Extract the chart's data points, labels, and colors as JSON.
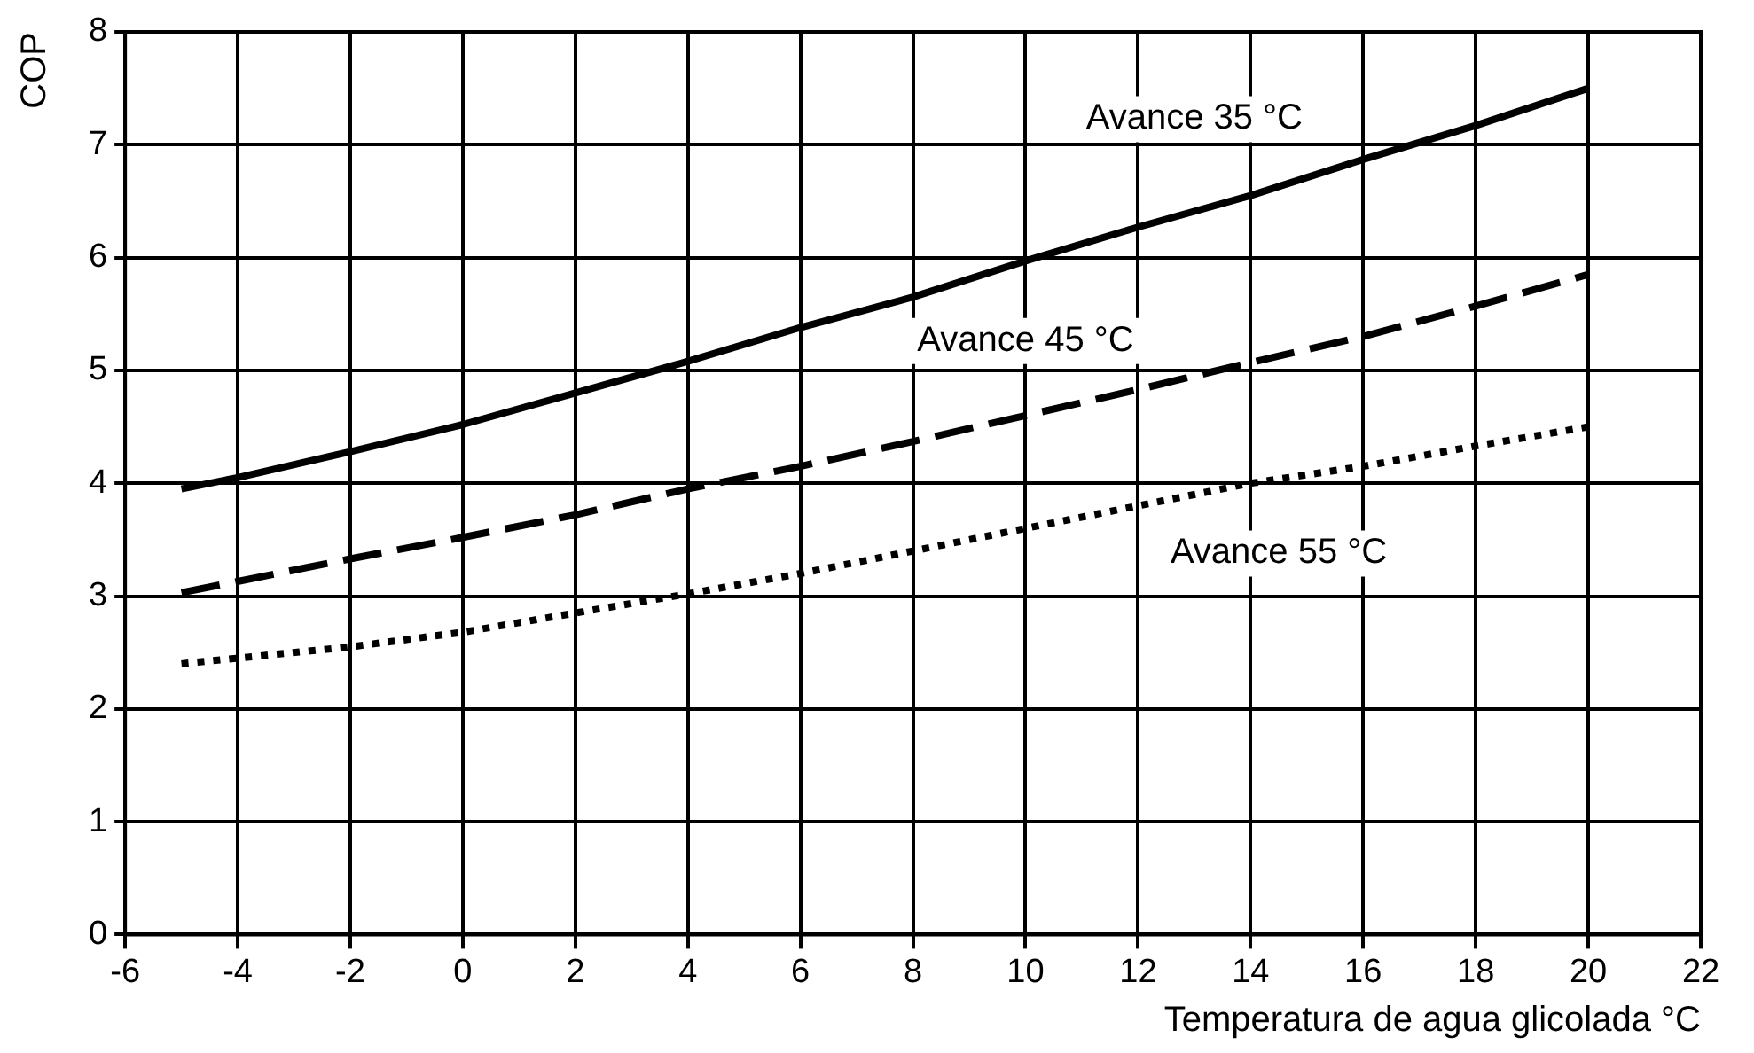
{
  "chart_data": {
    "type": "line",
    "xlabel": "Temperatura de agua glicolada °C",
    "ylabel": "COP",
    "xlim": [
      -6,
      22
    ],
    "xticks": [
      -6,
      -4,
      -2,
      0,
      2,
      4,
      6,
      8,
      10,
      12,
      14,
      16,
      18,
      20,
      22
    ],
    "ylim": [
      0,
      8
    ],
    "yticks": [
      0,
      1,
      2,
      3,
      4,
      5,
      6,
      7,
      8
    ],
    "grid": true,
    "legend": false,
    "marker": "none",
    "series": [
      {
        "name": "Avance 35 °C",
        "color": "#000000",
        "line_style": "solid",
        "x": [
          -5,
          -4,
          -2,
          0,
          2,
          4,
          6,
          8,
          10,
          12,
          14,
          16,
          18,
          20
        ],
        "values": [
          3.95,
          4.05,
          4.28,
          4.52,
          4.8,
          5.08,
          5.38,
          5.65,
          5.97,
          6.27,
          6.55,
          6.87,
          7.17,
          7.5
        ]
      },
      {
        "name": "Avance 45 °C",
        "color": "#000000",
        "line_style": "dashed",
        "x": [
          -5,
          -2,
          0,
          2,
          4,
          6,
          8,
          10,
          12,
          14,
          16,
          18,
          20
        ],
        "values": [
          3.03,
          3.33,
          3.52,
          3.72,
          3.95,
          4.15,
          4.37,
          4.6,
          4.83,
          5.07,
          5.3,
          5.57,
          5.85
        ]
      },
      {
        "name": "Avance 55 °C",
        "color": "#000000",
        "line_style": "dotted",
        "x": [
          -5,
          -2,
          0,
          2,
          4,
          6,
          8,
          10,
          12,
          14,
          16,
          18,
          20
        ],
        "values": [
          2.4,
          2.55,
          2.68,
          2.85,
          3.02,
          3.2,
          3.4,
          3.6,
          3.8,
          4.0,
          4.15,
          4.33,
          4.5
        ]
      }
    ]
  }
}
